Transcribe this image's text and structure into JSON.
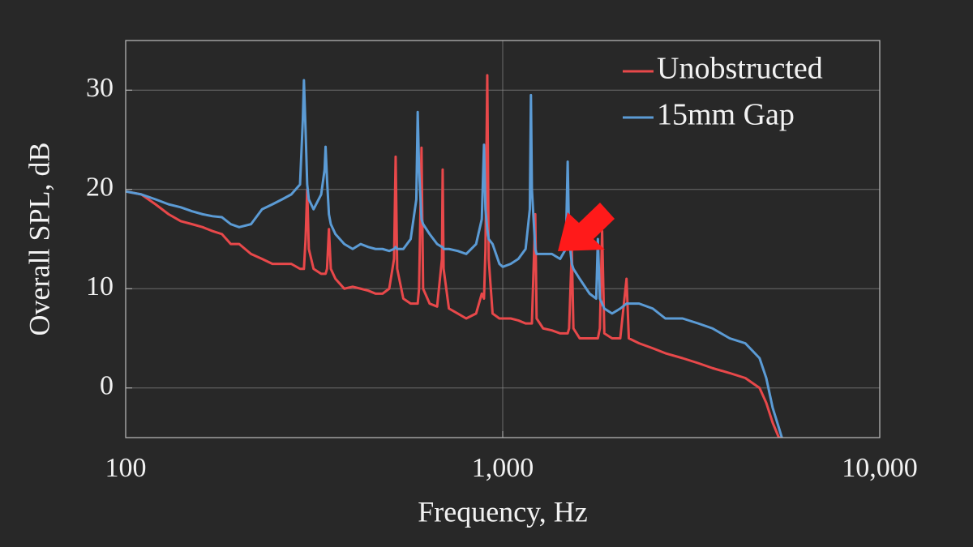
{
  "chart_data": {
    "type": "line",
    "xlabel": "Frequency, Hz",
    "ylabel": "Overall SPL, dB",
    "xscale": "log",
    "grid": true,
    "legend": "upper right",
    "xlim": [
      100,
      10000
    ],
    "xticks": [
      100,
      {
        "value": 1000,
        "label": "1,000"
      },
      {
        "value": 10000,
        "label": "10,000"
      }
    ],
    "ylim": [
      -5,
      35
    ],
    "yticks": [
      0,
      10,
      20,
      30
    ],
    "x": [
      100,
      110,
      120,
      130,
      140,
      150,
      160,
      170,
      180,
      190,
      200,
      215,
      230,
      245,
      260,
      275,
      290,
      295,
      297,
      300,
      303,
      306,
      315,
      330,
      337,
      339,
      342,
      346,
      350,
      360,
      380,
      400,
      420,
      440,
      460,
      480,
      500,
      515,
      520,
      525,
      545,
      570,
      590,
      595,
      600,
      609,
      615,
      640,
      670,
      690,
      693,
      697,
      720,
      760,
      800,
      850,
      880,
      892,
      900,
      910,
      918,
      940,
      980,
      1000,
      1050,
      1100,
      1150,
      1180,
      1188,
      1195,
      1220,
      1230,
      1280,
      1350,
      1420,
      1470,
      1487,
      1500,
      1525,
      1540,
      1600,
      1700,
      1770,
      1788,
      1810,
      1835,
      1860,
      1950,
      2050,
      2130,
      2160,
      2300,
      2500,
      2700,
      3000,
      3300,
      3600,
      4000,
      4400,
      4800,
      5000,
      5200,
      5400,
      5500
    ],
    "series": [
      {
        "name": "Unobstructed",
        "color": "#e8484a",
        "values": [
          19.8,
          19.5,
          18.5,
          17.5,
          16.8,
          16.5,
          16.2,
          15.8,
          15.5,
          14.5,
          14.5,
          13.5,
          13,
          12.5,
          12.5,
          12.5,
          12,
          12,
          12,
          15,
          20,
          14,
          12,
          11.5,
          11.5,
          11.5,
          12,
          16,
          12,
          11,
          10,
          10.2,
          10,
          9.8,
          9.5,
          9.5,
          10,
          13,
          23.3,
          12,
          9,
          8.5,
          8.5,
          8.5,
          10,
          24.2,
          10,
          8.5,
          8.2,
          13,
          22,
          12,
          8,
          7.5,
          7,
          7.5,
          9.5,
          9,
          14,
          31.5,
          13,
          7.5,
          7,
          7,
          7,
          6.8,
          6.5,
          6.5,
          6.5,
          6.5,
          17.5,
          7,
          6,
          5.8,
          5.5,
          5.5,
          5.5,
          6,
          14,
          6,
          5,
          5,
          5,
          5,
          6,
          15.8,
          5.5,
          5,
          5,
          11,
          5,
          4.5,
          4,
          3.5,
          3,
          2.5,
          2,
          1.5,
          1,
          0,
          -1.5,
          -3.5,
          -5,
          -5
        ]
      },
      {
        "name": "15mm Gap",
        "color": "#5b9bd5",
        "values": [
          19.8,
          19.5,
          19,
          18.5,
          18.2,
          17.8,
          17.5,
          17.3,
          17.2,
          16.5,
          16.2,
          16.5,
          18,
          18.5,
          19,
          19.5,
          20.5,
          27,
          31,
          26,
          20.5,
          19,
          18,
          19.5,
          22,
          24.3,
          21,
          17.5,
          16.5,
          15.5,
          14.5,
          14,
          14.5,
          14.2,
          14,
          14,
          13.8,
          14,
          14.2,
          14,
          14,
          15,
          19,
          27.8,
          22,
          17,
          16.5,
          15.5,
          14.5,
          14.2,
          14.2,
          14,
          14,
          13.8,
          13.5,
          14.5,
          17,
          24.5,
          18,
          16,
          15,
          14.5,
          12.5,
          12.2,
          12.5,
          13,
          14,
          18,
          29.5,
          20,
          14,
          13.5,
          13.5,
          13.5,
          13,
          14,
          22.8,
          15,
          12.5,
          12,
          11,
          9.5,
          9,
          15,
          9,
          8.5,
          8,
          7.5,
          8,
          8.5,
          8.5,
          8.5,
          8,
          7,
          7,
          6.5,
          6,
          5,
          4.5,
          3,
          1,
          -2,
          -4,
          -5
        ]
      }
    ]
  }
}
